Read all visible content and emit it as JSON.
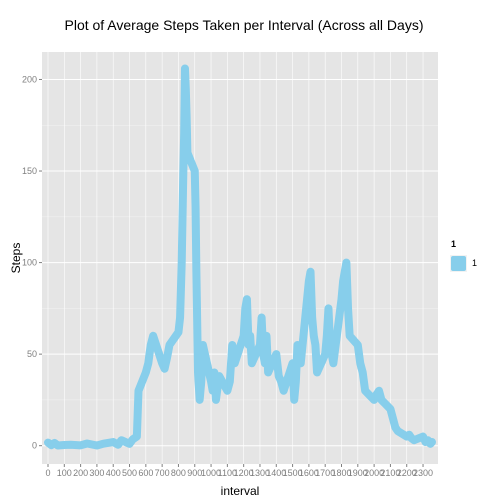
{
  "chart_data": {
    "type": "line",
    "title": "Plot of Average Steps Taken per Interval (Across all Days)",
    "xlabel": "interval",
    "ylabel": "Steps",
    "xlim": [
      0,
      2355
    ],
    "ylim": [
      -10,
      215
    ],
    "x_tick_values": [
      0,
      100,
      200,
      300,
      400,
      500,
      600,
      700,
      800,
      900,
      1000,
      1100,
      1200,
      1300,
      1400,
      1500,
      1600,
      1700,
      1800,
      1900,
      2000,
      2100,
      2200,
      2300
    ],
    "x_tick_labels": [
      "0",
      "100",
      "200",
      "300",
      "400",
      "500",
      "600",
      "700",
      "800",
      "900",
      "1000",
      "1100",
      "1200",
      "1300",
      "1400",
      "1500",
      "1600",
      "1700",
      "1800",
      "1900",
      "2000",
      "2100",
      "2200",
      "2300"
    ],
    "y_ticks": [
      0,
      50,
      100,
      150,
      200
    ],
    "y_tick_labels": [
      "0",
      "50",
      "100",
      "150",
      "200"
    ],
    "grid": true,
    "legend": {
      "title": "1",
      "position": "right",
      "entries": [
        "1"
      ]
    },
    "colors": {
      "line": "#87CEEB",
      "panel": "#E5E5E5",
      "grid": "#FFFFFF"
    },
    "series": [
      {
        "name": "1",
        "x": [
          0,
          20,
          40,
          60,
          100,
          140,
          200,
          240,
          300,
          340,
          400,
          430,
          450,
          500,
          520,
          545,
          555,
          600,
          615,
          630,
          645,
          700,
          715,
          730,
          745,
          800,
          810,
          820,
          830,
          835,
          840,
          845,
          850,
          855,
          900,
          905,
          910,
          920,
          930,
          940,
          950,
          1000,
          1010,
          1020,
          1030,
          1040,
          1050,
          1100,
          1115,
          1130,
          1145,
          1200,
          1210,
          1220,
          1230,
          1240,
          1250,
          1300,
          1310,
          1320,
          1330,
          1340,
          1350,
          1400,
          1415,
          1430,
          1445,
          1500,
          1510,
          1520,
          1530,
          1540,
          1550,
          1600,
          1610,
          1620,
          1630,
          1640,
          1650,
          1700,
          1710,
          1720,
          1730,
          1740,
          1750,
          1800,
          1810,
          1820,
          1830,
          1840,
          1850,
          1900,
          1915,
          1930,
          1945,
          2000,
          2015,
          2030,
          2045,
          2100,
          2115,
          2130,
          2145,
          2200,
          2215,
          2230,
          2245,
          2300,
          2315,
          2330,
          2345,
          2355
        ],
        "values": [
          1.7,
          0.3,
          1.5,
          0.1,
          0.4,
          0.5,
          0.2,
          1.2,
          0.1,
          1.1,
          2.0,
          0.5,
          3.0,
          1.0,
          3.5,
          5.0,
          30,
          40,
          45,
          55,
          60,
          45,
          42,
          48,
          55,
          62,
          70,
          100,
          150,
          170,
          206,
          195,
          180,
          160,
          150,
          130,
          95,
          40,
          25,
          35,
          55,
          35,
          30,
          40,
          25,
          32,
          38,
          30,
          35,
          55,
          45,
          60,
          75,
          80,
          55,
          60,
          45,
          55,
          70,
          50,
          45,
          60,
          40,
          50,
          38,
          35,
          30,
          45,
          25,
          35,
          55,
          50,
          45,
          90,
          95,
          70,
          60,
          55,
          40,
          50,
          60,
          75,
          55,
          50,
          45,
          80,
          90,
          95,
          100,
          75,
          60,
          55,
          45,
          40,
          30,
          25,
          28,
          30,
          25,
          20,
          15,
          10,
          8,
          5,
          6,
          4,
          3,
          5,
          2,
          3,
          1,
          2
        ]
      }
    ]
  }
}
